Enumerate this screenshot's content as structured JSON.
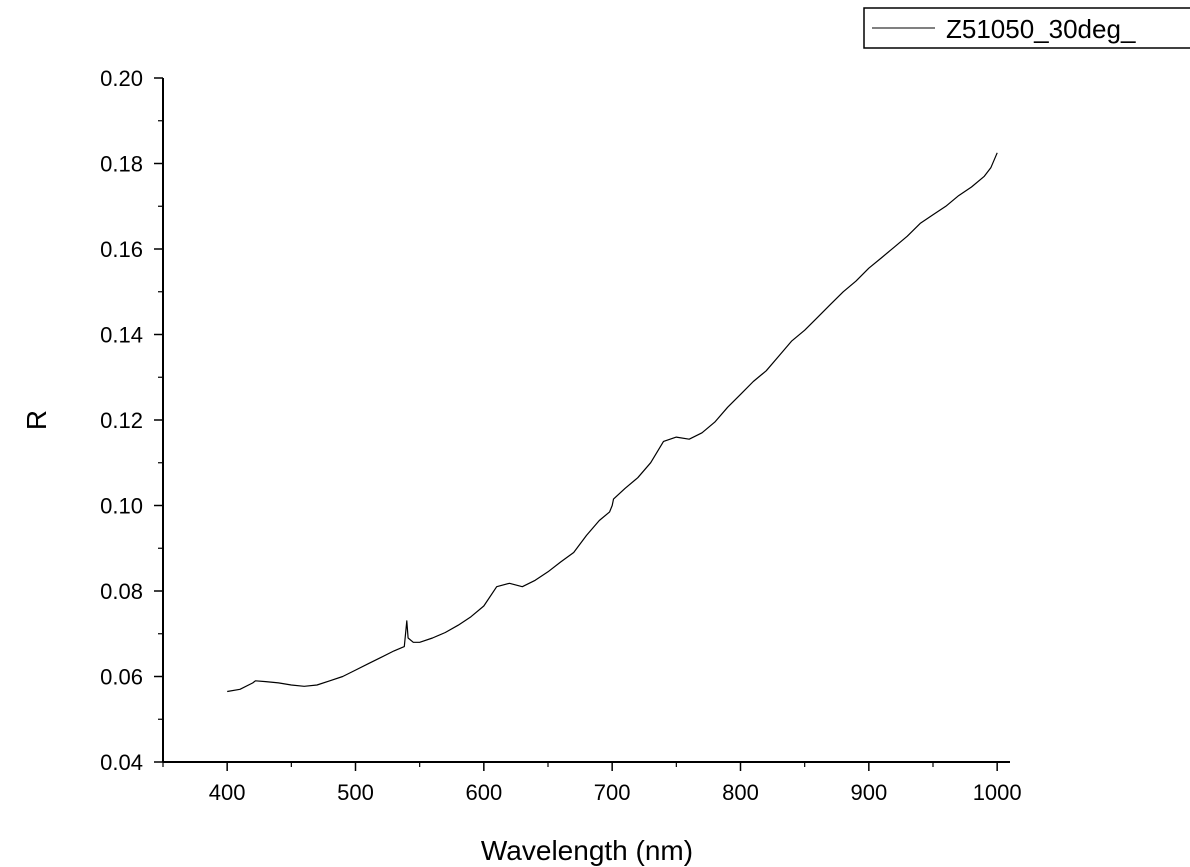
{
  "chart_data": {
    "type": "line",
    "title": "",
    "xlabel": "Wavelength (nm)",
    "ylabel": "R",
    "xlim": [
      350,
      1010
    ],
    "ylim": [
      0.04,
      0.2
    ],
    "x_ticks": [
      400,
      500,
      600,
      700,
      800,
      900,
      1000
    ],
    "x_tick_labels": [
      "400",
      "500",
      "600",
      "700",
      "800",
      "900",
      "1000"
    ],
    "y_ticks": [
      0.04,
      0.06,
      0.08,
      0.1,
      0.12,
      0.14,
      0.16,
      0.18,
      0.2
    ],
    "y_tick_labels": [
      "0.04",
      "0.06",
      "0.08",
      "0.10",
      "0.12",
      "0.14",
      "0.16",
      "0.18",
      "0.20"
    ],
    "grid": false,
    "legend": {
      "position": "top-right",
      "entries": [
        "Z51050_30deg_"
      ]
    },
    "series": [
      {
        "name": "Z51050_30deg_",
        "color": "#000000",
        "x": [
          400,
          410,
          420,
          422,
          430,
          440,
          450,
          460,
          470,
          480,
          490,
          500,
          510,
          520,
          530,
          538,
          540,
          541,
          545,
          550,
          560,
          570,
          580,
          590,
          600,
          610,
          620,
          630,
          640,
          650,
          660,
          670,
          680,
          690,
          698,
          700,
          701,
          710,
          720,
          730,
          740,
          750,
          760,
          770,
          780,
          790,
          800,
          810,
          820,
          830,
          840,
          850,
          860,
          870,
          880,
          890,
          900,
          910,
          920,
          930,
          940,
          950,
          960,
          970,
          980,
          990,
          995,
          1000
        ],
        "y": [
          0.0565,
          0.057,
          0.0585,
          0.059,
          0.0588,
          0.0585,
          0.058,
          0.0577,
          0.058,
          0.059,
          0.06,
          0.0615,
          0.063,
          0.0645,
          0.066,
          0.067,
          0.073,
          0.069,
          0.068,
          0.068,
          0.069,
          0.0703,
          0.072,
          0.074,
          0.0765,
          0.081,
          0.0818,
          0.081,
          0.0825,
          0.0845,
          0.0868,
          0.089,
          0.093,
          0.0965,
          0.0985,
          0.1,
          0.1015,
          0.104,
          0.1065,
          0.11,
          0.115,
          0.116,
          0.1155,
          0.117,
          0.1195,
          0.123,
          0.126,
          0.129,
          0.1315,
          0.135,
          0.1385,
          0.141,
          0.144,
          0.147,
          0.15,
          0.1525,
          0.1555,
          0.158,
          0.1605,
          0.163,
          0.166,
          0.168,
          0.17,
          0.1725,
          0.1745,
          0.177,
          0.179,
          0.1825
        ]
      }
    ]
  }
}
